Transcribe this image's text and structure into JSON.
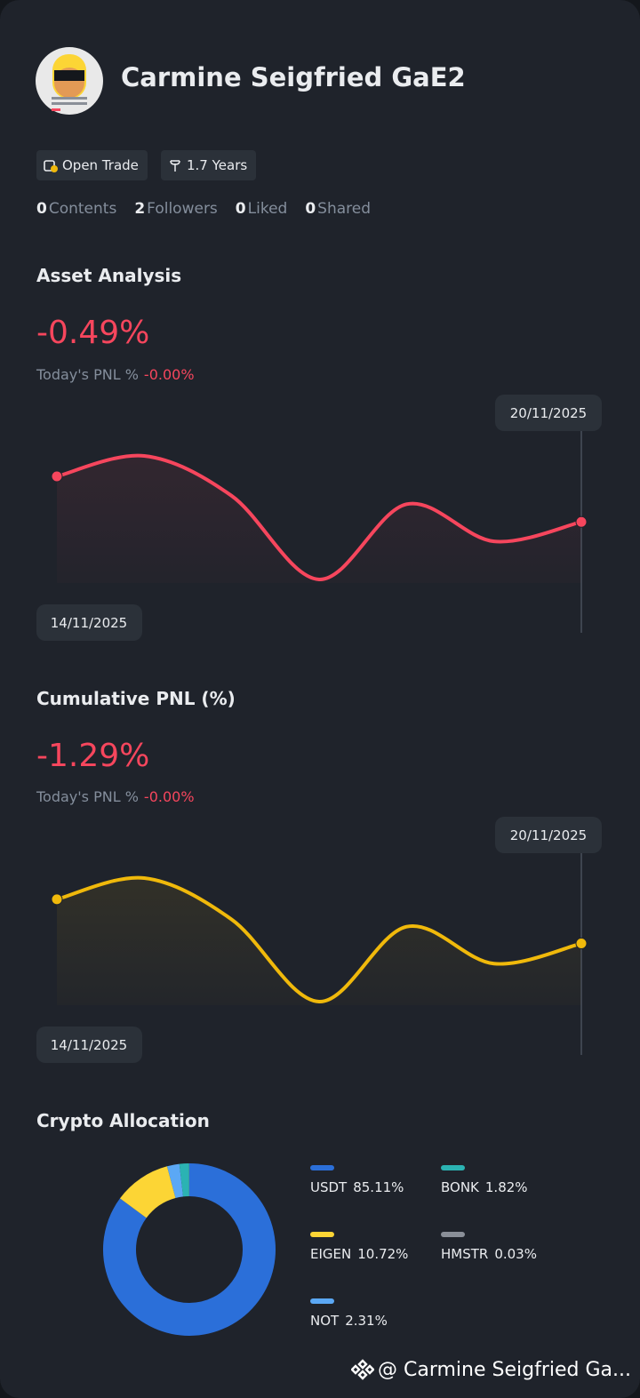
{
  "profile": {
    "name": "Carmine Seigfried GaE2",
    "tags": [
      "Open Trade",
      "1.7 Years"
    ],
    "stats": [
      {
        "count": 0,
        "label": "Contents"
      },
      {
        "count": 2,
        "label": "Followers"
      },
      {
        "count": 0,
        "label": "Liked"
      },
      {
        "count": 0,
        "label": "Shared"
      }
    ]
  },
  "chart_data": [
    {
      "type": "line",
      "title": "Asset Analysis",
      "headline": "-0.49%",
      "today_label": "Today's PNL %",
      "today_value": "-0.00%",
      "categories": [
        "14/11/2025",
        null,
        null,
        null,
        null,
        null,
        "20/11/2025"
      ],
      "series": [
        {
          "color": "#f6465d",
          "values": [
            0,
            0.22,
            -0.21,
            -1.11,
            -0.3,
            -0.7,
            -0.49
          ]
        }
      ]
    },
    {
      "type": "line",
      "title": "Cumulative PNL (%)",
      "headline": "-1.29%",
      "today_label": "Today's PNL %",
      "today_value": "-0.00%",
      "categories": [
        "14/11/2025",
        null,
        null,
        null,
        null,
        null,
        "20/11/2025"
      ],
      "series": [
        {
          "color": "#f0b90b",
          "values": [
            0,
            0.62,
            -0.59,
            -2.99,
            -0.8,
            -1.88,
            -1.29
          ]
        }
      ]
    },
    {
      "type": "pie",
      "title": "Crypto Allocation",
      "donut": true,
      "categories": [
        "USDT",
        "EIGEN",
        "NOT",
        "BONK",
        "HMSTR"
      ],
      "values": [
        85.11,
        10.72,
        2.31,
        1.82,
        0.03
      ],
      "value_labels": [
        "85.11%",
        "10.72%",
        "2.31%",
        "1.82%",
        "0.03%"
      ],
      "colors": [
        "#2b6fd9",
        "#fcd535",
        "#5ba8f5",
        "#2bb3b3",
        "#8a8f98"
      ]
    }
  ],
  "watermark": "@ Carmine Seigfried Ga..."
}
